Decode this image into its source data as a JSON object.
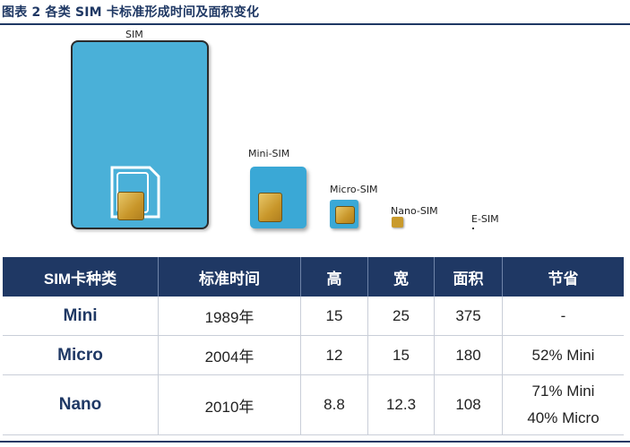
{
  "figure": {
    "title": "图表 2 各类 SIM 卡标准形成时间及面积变化"
  },
  "illustration": {
    "labels": {
      "sim": "SIM",
      "mini": "Mini-SIM",
      "micro": "Micro-SIM",
      "nano": "Nano-SIM",
      "esim": "E-SIM"
    },
    "colors": {
      "card": "#4ab0d8",
      "chip": "#d4a93c",
      "cutout": "#ffffff"
    }
  },
  "table": {
    "headers": [
      "SIM卡种类",
      "标准时间",
      "高",
      "宽",
      "面积",
      "节省"
    ],
    "rows": [
      {
        "name": "Mini",
        "year": "1989年",
        "height": "15",
        "width": "25",
        "area": "375",
        "saving": [
          "-"
        ]
      },
      {
        "name": "Micro",
        "year": "2004年",
        "height": "12",
        "width": "15",
        "area": "180",
        "saving": [
          "52% Mini"
        ]
      },
      {
        "name": "Nano",
        "year": "2010年",
        "height": "8.8",
        "width": "12.3",
        "area": "108",
        "saving": [
          "71% Mini",
          "40% Micro"
        ]
      }
    ],
    "header_color": "#1f3864"
  }
}
